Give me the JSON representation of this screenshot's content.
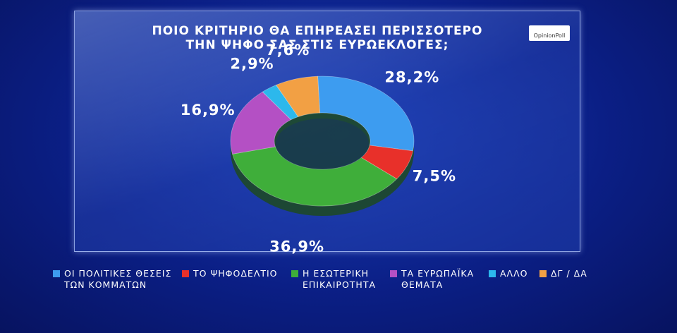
{
  "chart_data": {
    "type": "donut",
    "title": "ΠΟΙΟ ΚΡΙΤΗΡΙΟ ΘΑ ΕΠΗΡΕΑΣΕΙ ΠΕΡΙΣΣΟΤΕΡΟ ΤΗΝ ΨΗΦΟ ΣΑΣ ΣΤΙΣ ΕΥΡΩΕΚΛΟΓΕΣ;",
    "logo": "OpinionPoll",
    "categories": [
      "ΟΙ ΠΟΛΙΤΙΚΕΣ ΘΕΣΕΙΣ ΤΩΝ ΚΟΜΜΑΤΩΝ",
      "ΤΟ ΨΗΦΟΔΕΛΤΙΟ",
      "Η ΕΣΩΤΕΡΙΚΗ ΕΠΙΚΑΙΡΟΤΗΤΑ",
      "ΤΑ ΕΥΡΩΠΑΪΚΑ ΘΕΜΑΤΑ",
      "ΑΛΛΟ",
      "ΔΓ / ΔΑ"
    ],
    "values": [
      28.2,
      7.5,
      36.9,
      16.9,
      2.9,
      7.6
    ],
    "value_labels": [
      "28,2%",
      "7,5%",
      "36,9%",
      "16,9%",
      "2,9%",
      "7,6%"
    ],
    "colors": [
      "#3d9cf0",
      "#e8302a",
      "#3fae3a",
      "#b450c4",
      "#2cb8ec",
      "#f2a044"
    ]
  }
}
